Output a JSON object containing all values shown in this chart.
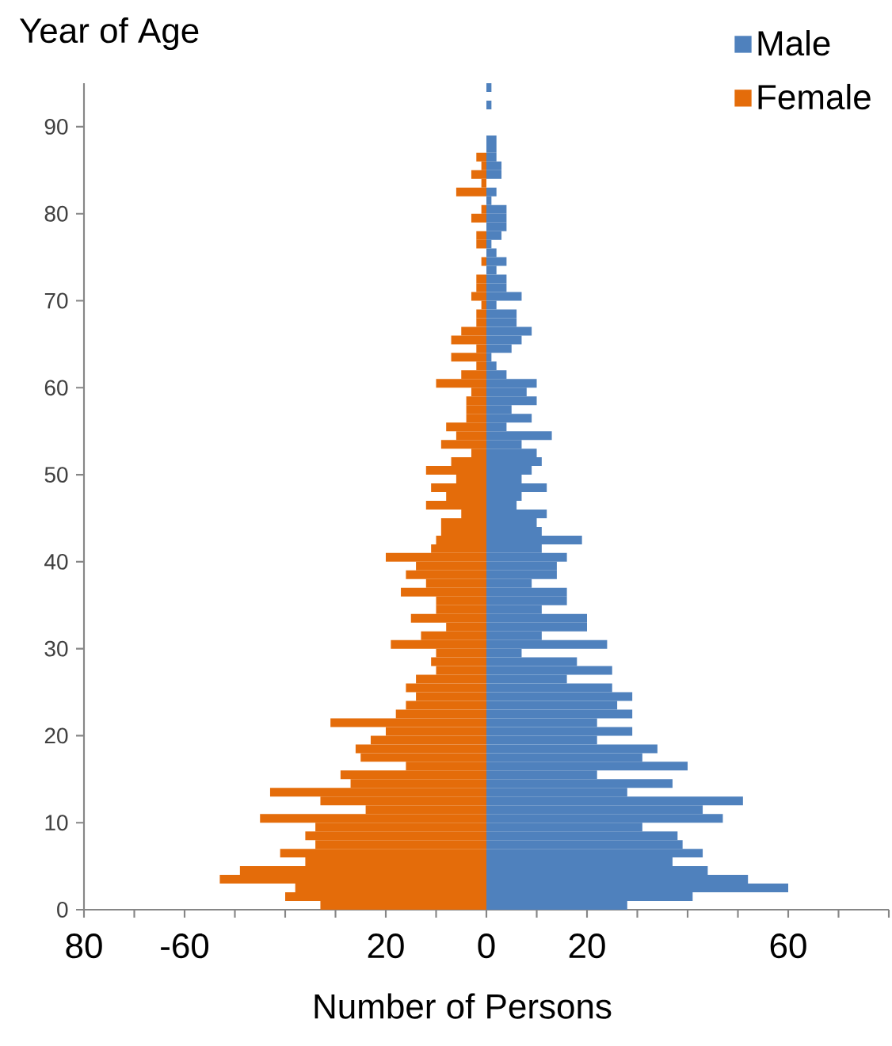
{
  "chart_data": {
    "type": "bar",
    "orientation": "horizontal",
    "xlabel": "Number of Persons",
    "ylabel": "Year of Age",
    "x": [
      0,
      1,
      2,
      3,
      4,
      5,
      6,
      7,
      8,
      9,
      10,
      11,
      12,
      13,
      14,
      15,
      16,
      17,
      18,
      19,
      20,
      21,
      22,
      23,
      24,
      25,
      26,
      27,
      28,
      29,
      30,
      31,
      32,
      33,
      34,
      35,
      36,
      37,
      38,
      39,
      40,
      41,
      42,
      43,
      44,
      45,
      46,
      47,
      48,
      49,
      50,
      51,
      52,
      53,
      54,
      55,
      56,
      57,
      58,
      59,
      60,
      61,
      62,
      63,
      64,
      65,
      66,
      67,
      68,
      69,
      70,
      71,
      72,
      73,
      74,
      75,
      76,
      77,
      78,
      79,
      80,
      81,
      82,
      83,
      84,
      85,
      86,
      87,
      88,
      89,
      90,
      91,
      92,
      93,
      94
    ],
    "series": [
      {
        "name": "Male",
        "color": "#4f81bd",
        "values": [
          28,
          41,
          60,
          52,
          44,
          37,
          43,
          39,
          38,
          31,
          47,
          43,
          51,
          28,
          37,
          22,
          40,
          31,
          34,
          22,
          29,
          22,
          29,
          26,
          29,
          25,
          16,
          25,
          18,
          7,
          24,
          11,
          20,
          20,
          11,
          16,
          16,
          9,
          14,
          14,
          16,
          11,
          19,
          11,
          10,
          12,
          6,
          7,
          12,
          7,
          9,
          11,
          10,
          7,
          13,
          4,
          9,
          5,
          10,
          8,
          10,
          4,
          2,
          1,
          5,
          7,
          9,
          6,
          6,
          2,
          7,
          4,
          4,
          2,
          4,
          2,
          1,
          3,
          4,
          4,
          4,
          1,
          2,
          null,
          3,
          3,
          2,
          2,
          2,
          null,
          null,
          null,
          1,
          null,
          1
        ]
      },
      {
        "name": "Female",
        "color": "#e46c0a",
        "values": [
          -33,
          -40,
          -38,
          -53,
          -49,
          -36,
          -41,
          -34,
          -36,
          -34,
          -45,
          -24,
          -33,
          -43,
          -27,
          -29,
          -16,
          -25,
          -26,
          -23,
          -20,
          -31,
          -18,
          -16,
          -14,
          -16,
          -14,
          -10,
          -11,
          -10,
          -19,
          -13,
          -8,
          -15,
          -10,
          -10,
          -17,
          -12,
          -16,
          -14,
          -20,
          -11,
          -10,
          -9,
          -9,
          -5,
          -12,
          -8,
          -11,
          -6,
          -12,
          -7,
          -3,
          -9,
          -6,
          -8,
          -4,
          -4,
          -4,
          -3,
          -10,
          -5,
          -2,
          -7,
          -2,
          -7,
          -5,
          -2,
          -2,
          -1,
          -3,
          -2,
          -2,
          null,
          -1,
          null,
          -2,
          -2,
          null,
          -3,
          -1,
          null,
          -6,
          -1,
          -3,
          -1,
          -2,
          null,
          null,
          null,
          null,
          null,
          null,
          null,
          null
        ]
      }
    ],
    "xlim": [
      -80,
      80
    ],
    "xticks": [
      {
        "value": -80,
        "label": "80"
      },
      {
        "value": -70,
        "label": null
      },
      -60,
      {
        "value": -50,
        "label": null
      },
      {
        "value": -40,
        "label": null
      },
      {
        "value": -30,
        "label": null
      },
      {
        "value": -20,
        "label": "20"
      },
      {
        "value": -10,
        "label": null
      },
      0,
      {
        "value": 10,
        "label": null
      },
      20,
      {
        "value": 30,
        "label": null
      },
      {
        "value": 40,
        "label": null
      },
      {
        "value": 50,
        "label": null
      },
      60,
      {
        "value": 70,
        "label": null
      },
      {
        "value": 80,
        "label": null
      }
    ],
    "ylim": [
      0,
      95
    ],
    "yticks": [
      0,
      10,
      20,
      30,
      40,
      50,
      60,
      70,
      80,
      90
    ],
    "stacked": true,
    "legend": "top right"
  }
}
